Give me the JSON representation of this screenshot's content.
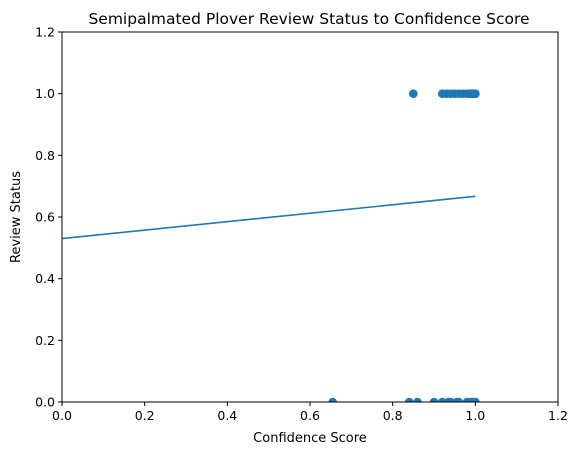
{
  "chart_data": {
    "type": "scatter",
    "title": "Semipalmated Plover Review Status to Confidence Score",
    "xlabel": "Confidence Score",
    "ylabel": "Review Status",
    "xlim": [
      0.0,
      1.2
    ],
    "ylim": [
      0.0,
      1.2
    ],
    "xticks": [
      "0.0",
      "0.2",
      "0.4",
      "0.6",
      "0.8",
      "1.0",
      "1.2"
    ],
    "yticks": [
      "0.0",
      "0.2",
      "0.4",
      "0.6",
      "0.8",
      "1.0",
      "1.2"
    ],
    "grid": false,
    "color": "#1f77b4",
    "series": [
      {
        "kind": "points",
        "x": [
          0.85,
          0.92,
          0.93,
          0.94,
          0.95,
          0.96,
          0.97,
          0.98,
          0.985,
          0.99,
          0.995,
          1.0,
          1.0,
          1.0,
          0.655,
          0.84,
          0.86,
          0.9,
          0.92,
          0.935,
          0.94,
          0.955,
          0.96,
          0.98,
          0.99,
          0.995,
          1.0,
          1.0
        ],
        "y": [
          1,
          1,
          1,
          1,
          1,
          1,
          1,
          1,
          1,
          1,
          1,
          1,
          1,
          1,
          0,
          0,
          0,
          0,
          0,
          0,
          0,
          0,
          0,
          0,
          0,
          0,
          0,
          0
        ]
      },
      {
        "kind": "line",
        "x": [
          0.0,
          1.0
        ],
        "y": [
          0.53,
          0.667
        ]
      }
    ]
  }
}
